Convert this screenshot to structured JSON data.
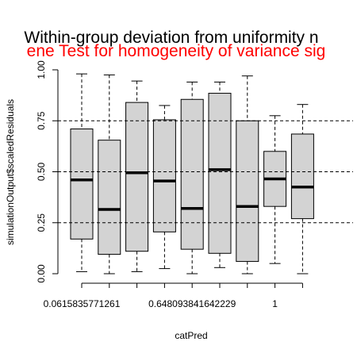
{
  "chart_data": {
    "type": "boxplot",
    "title": "Within-group deviation from uniformity n",
    "subtitle": "ene Test for homogeneity of variance sig",
    "xlabel": "catPred",
    "ylabel": "simulationOutput$scaledResiduals",
    "ylim": [
      0,
      1
    ],
    "yticks": [
      "0.00",
      "0.25",
      "0.50",
      "0.75",
      "1.00"
    ],
    "xtick_labels": [
      {
        "position": 1,
        "label": "0.0615835771261"
      },
      {
        "position": 5,
        "label": "0.648093841642229"
      },
      {
        "position": 8,
        "label": "1"
      }
    ],
    "reference_lines": [
      0.25,
      0.5,
      0.75
    ],
    "box_fill": "#d3d3d3",
    "title_color": "#000000",
    "subtitle_color": "#ff0000",
    "boxes": [
      {
        "position": 1,
        "min": 0.01,
        "q1": 0.17,
        "median": 0.46,
        "q3": 0.71,
        "max": 0.98
      },
      {
        "position": 2,
        "min": 0.0,
        "q1": 0.095,
        "median": 0.315,
        "q3": 0.655,
        "max": 0.975
      },
      {
        "position": 3,
        "min": 0.01,
        "q1": 0.11,
        "median": 0.495,
        "q3": 0.84,
        "max": 0.945
      },
      {
        "position": 4,
        "min": 0.025,
        "q1": 0.205,
        "median": 0.455,
        "q3": 0.755,
        "max": 0.825
      },
      {
        "position": 5,
        "min": 0.0,
        "q1": 0.12,
        "median": 0.32,
        "q3": 0.855,
        "max": 0.94
      },
      {
        "position": 6,
        "min": 0.03,
        "q1": 0.1,
        "median": 0.51,
        "q3": 0.885,
        "max": 0.94
      },
      {
        "position": 7,
        "min": 0.0,
        "q1": 0.06,
        "median": 0.33,
        "q3": 0.75,
        "max": 0.97
      },
      {
        "position": 8,
        "min": 0.05,
        "q1": 0.33,
        "median": 0.465,
        "q3": 0.6,
        "max": 0.775
      },
      {
        "position": 9,
        "min": 0.0,
        "q1": 0.27,
        "median": 0.425,
        "q3": 0.685,
        "max": 0.83
      }
    ]
  }
}
